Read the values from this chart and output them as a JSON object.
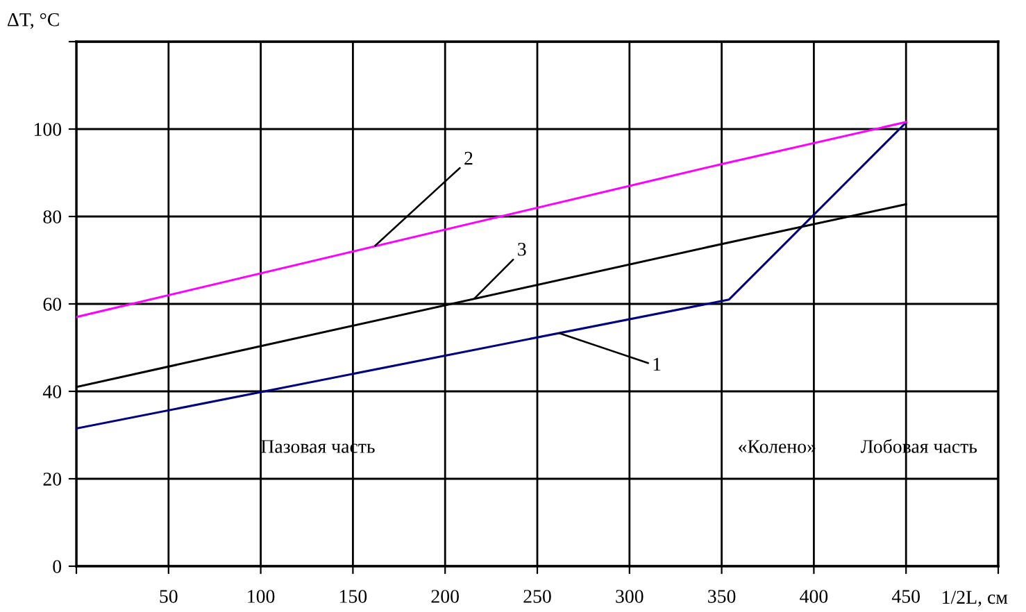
{
  "chart_data": {
    "type": "line",
    "xlabel": "1/2L, см",
    "ylabel": "ΔT, °C",
    "xlim": [
      0,
      500
    ],
    "ylim": [
      0,
      120
    ],
    "xticks": [
      {
        "value": 0,
        "label": null
      },
      50,
      100,
      150,
      200,
      250,
      300,
      350,
      400,
      450,
      {
        "value": 500,
        "label": null
      }
    ],
    "yticks": [
      0,
      20,
      40,
      60,
      80,
      100,
      {
        "value": 120,
        "label": null
      }
    ],
    "grid": true,
    "marker": "none",
    "line_style": "solid",
    "series": [
      {
        "color": "#000080",
        "x": [
          0,
          354,
          450
        ],
        "values": [
          31.5,
          61,
          101.5
        ]
      },
      {
        "color": "#ff00ff",
        "x": [
          0,
          350,
          450
        ],
        "values": [
          57,
          92,
          101.6
        ]
      },
      {
        "color": "#000000",
        "x": [
          0,
          350,
          450
        ],
        "values": [
          41,
          73.7,
          82.8
        ]
      }
    ],
    "annotations": [
      {
        "text": "1",
        "x": 262,
        "y": 53.3
      },
      {
        "text": "2",
        "x": 162,
        "y": 73.3
      },
      {
        "text": "3",
        "x": 216,
        "y": 61.3
      },
      "Пазовая часть",
      "«Колено»",
      "Лобовая часть"
    ]
  }
}
